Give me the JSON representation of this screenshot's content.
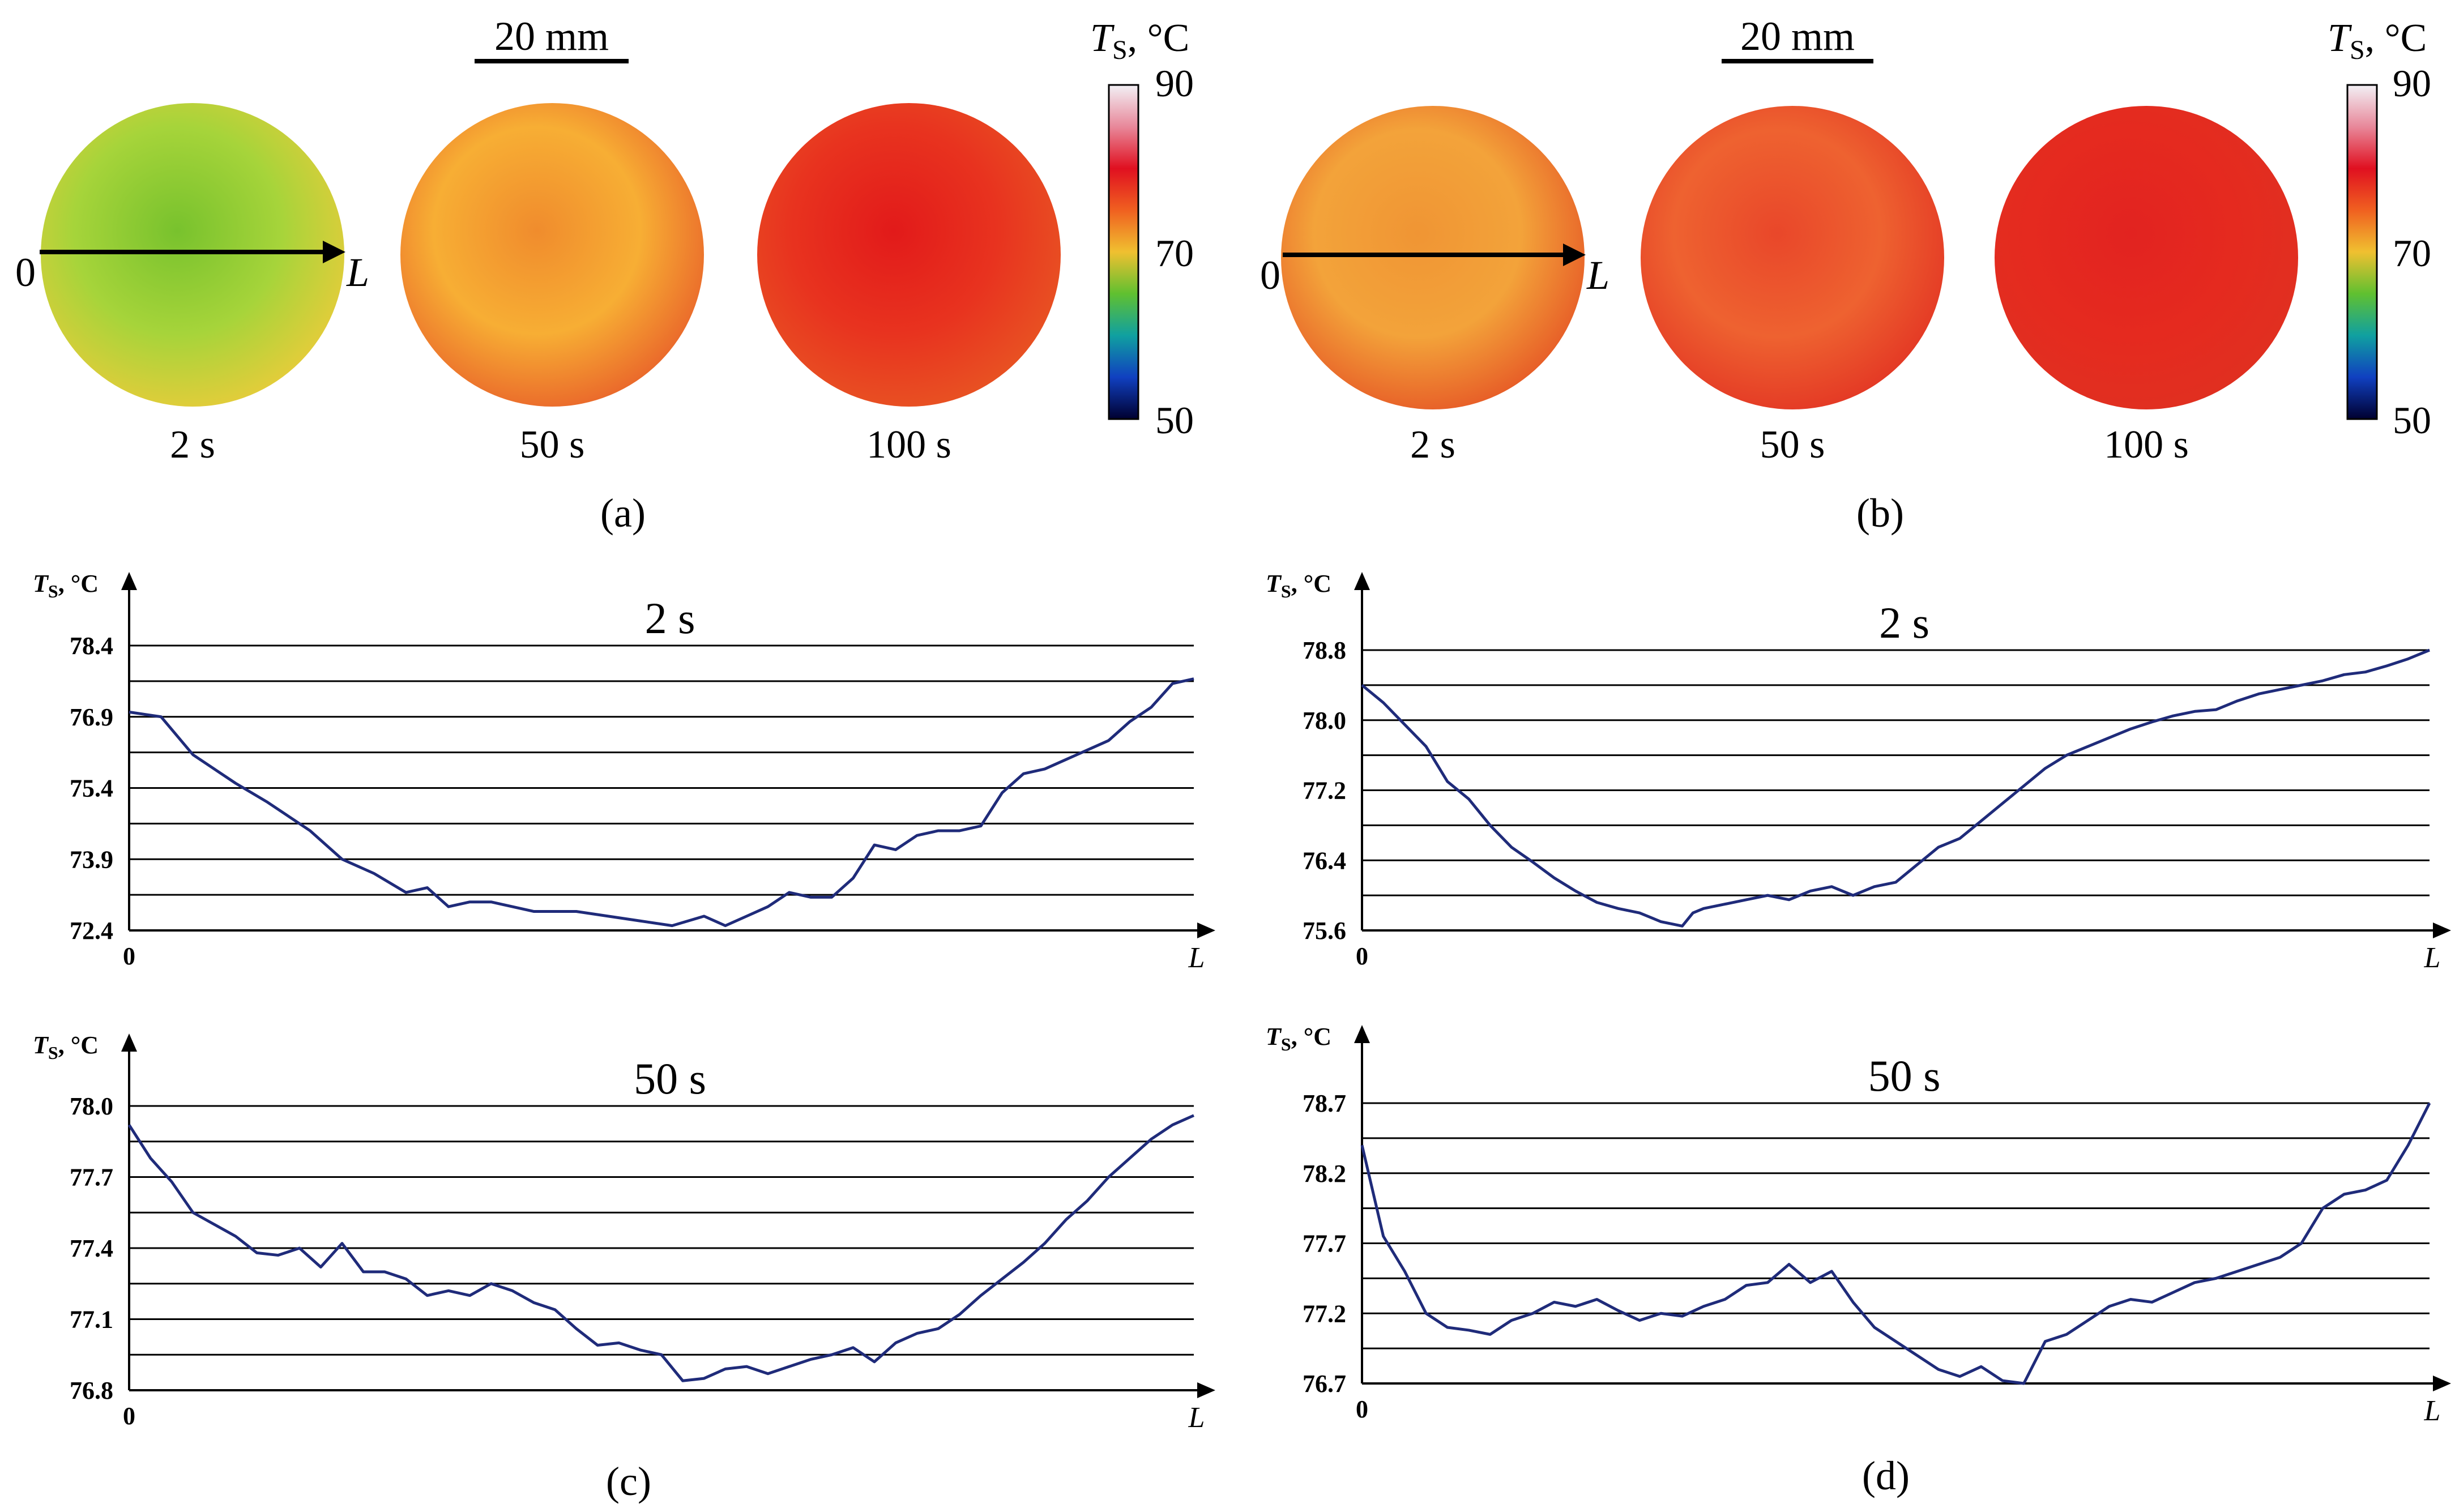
{
  "panels": [
    {
      "label": "(a)",
      "scale_bar": "20 mm",
      "frames": [
        {
          "time": "2 s",
          "colors": [
            "#a6d43a",
            "#78c22d",
            "#e8cc3a"
          ]
        },
        {
          "time": "50 s",
          "colors": [
            "#f7ae34",
            "#f08c2d",
            "#e9632a"
          ]
        },
        {
          "time": "100 s",
          "colors": [
            "#e8331f",
            "#e21a1a",
            "#e85423"
          ]
        }
      ],
      "line_start": "0",
      "line_end": "L",
      "colorbar": {
        "title_symbol": "T",
        "title_sub": "S",
        "title_unit": ", °C",
        "ticks": [
          "90",
          "70",
          "50"
        ],
        "range": [
          50,
          90
        ],
        "stops": [
          "#f2f0f5",
          "#e8889a",
          "#e01020",
          "#f06020",
          "#f0c030",
          "#60c030",
          "#10a0a0",
          "#1040c0",
          "#000030"
        ]
      }
    },
    {
      "label": "(b)",
      "scale_bar": "20 mm",
      "frames": [
        {
          "time": "2 s",
          "colors": [
            "#f3a33a",
            "#f09534",
            "#e65826"
          ]
        },
        {
          "time": "50 s",
          "colors": [
            "#ee6230",
            "#e9472a",
            "#e33624"
          ]
        },
        {
          "time": "100 s",
          "colors": [
            "#e52a1f",
            "#e22320",
            "#e03020"
          ]
        }
      ],
      "line_start": "0",
      "line_end": "L",
      "colorbar": {
        "title_symbol": "T",
        "title_sub": "S",
        "title_unit": ", °C",
        "ticks": [
          "90",
          "70",
          "50"
        ],
        "range": [
          50,
          90
        ],
        "stops": [
          "#f2f0f5",
          "#e8889a",
          "#e01020",
          "#f06020",
          "#f0c030",
          "#60c030",
          "#10a0a0",
          "#1040c0",
          "#000030"
        ]
      }
    }
  ],
  "chart_data": [
    {
      "id": "c",
      "type": "line",
      "panel_label": "(c)",
      "title": "2 s",
      "ylabel_symbol": "T",
      "ylabel_sub": "S",
      "ylabel_unit": ", °C",
      "x_start_label": "0",
      "x_end_label": "L",
      "yticks": [
        "78.4",
        "76.9",
        "75.4",
        "73.9",
        "72.4"
      ],
      "ylim": [
        72.4,
        78.4
      ],
      "grid": true,
      "series": [
        {
          "color": "#1f2b7a",
          "x": [
            0,
            0.03,
            0.06,
            0.1,
            0.13,
            0.17,
            0.2,
            0.23,
            0.26,
            0.28,
            0.3,
            0.32,
            0.34,
            0.36,
            0.38,
            0.4,
            0.42,
            0.45,
            0.48,
            0.51,
            0.54,
            0.56,
            0.58,
            0.6,
            0.62,
            0.64,
            0.66,
            0.68,
            0.7,
            0.72,
            0.74,
            0.76,
            0.78,
            0.8,
            0.82,
            0.84,
            0.86,
            0.88,
            0.9,
            0.92,
            0.94,
            0.96,
            0.98,
            1.0
          ],
          "y": [
            77.0,
            76.9,
            76.1,
            75.5,
            75.1,
            74.5,
            73.9,
            73.6,
            73.2,
            73.3,
            72.9,
            73.0,
            73.0,
            72.9,
            72.8,
            72.8,
            72.8,
            72.7,
            72.6,
            72.5,
            72.7,
            72.5,
            72.7,
            72.9,
            73.2,
            73.1,
            73.1,
            73.5,
            74.2,
            74.1,
            74.4,
            74.5,
            74.5,
            74.6,
            75.3,
            75.7,
            75.8,
            76.0,
            76.2,
            76.4,
            76.8,
            77.1,
            77.6,
            77.7
          ]
        }
      ]
    },
    {
      "id": "c2",
      "type": "line",
      "panel_label": "",
      "title": "50 s",
      "ylabel_symbol": "T",
      "ylabel_sub": "S",
      "ylabel_unit": ", °C",
      "x_start_label": "0",
      "x_end_label": "L",
      "yticks": [
        "78.0",
        "77.7",
        "77.4",
        "77.1",
        "76.8"
      ],
      "ylim": [
        76.8,
        78.0
      ],
      "grid": true,
      "series": [
        {
          "color": "#1f2b7a",
          "x": [
            0,
            0.02,
            0.04,
            0.06,
            0.08,
            0.1,
            0.12,
            0.14,
            0.16,
            0.18,
            0.2,
            0.22,
            0.24,
            0.26,
            0.28,
            0.3,
            0.32,
            0.34,
            0.36,
            0.38,
            0.4,
            0.42,
            0.44,
            0.46,
            0.48,
            0.5,
            0.52,
            0.54,
            0.56,
            0.58,
            0.6,
            0.62,
            0.64,
            0.66,
            0.68,
            0.7,
            0.72,
            0.74,
            0.76,
            0.78,
            0.8,
            0.82,
            0.84,
            0.86,
            0.88,
            0.9,
            0.92,
            0.94,
            0.96,
            0.98,
            1.0
          ],
          "y": [
            77.92,
            77.78,
            77.68,
            77.55,
            77.5,
            77.45,
            77.38,
            77.37,
            77.4,
            77.32,
            77.42,
            77.3,
            77.3,
            77.27,
            77.2,
            77.22,
            77.2,
            77.25,
            77.22,
            77.17,
            77.14,
            77.06,
            76.99,
            77.0,
            76.97,
            76.95,
            76.84,
            76.85,
            76.89,
            76.9,
            76.87,
            76.9,
            76.93,
            76.95,
            76.98,
            76.92,
            77.0,
            77.04,
            77.06,
            77.12,
            77.2,
            77.27,
            77.34,
            77.42,
            77.52,
            77.6,
            77.7,
            77.78,
            77.86,
            77.92,
            77.96
          ]
        }
      ]
    },
    {
      "id": "d",
      "type": "line",
      "panel_label": "(d)",
      "title": "2 s",
      "ylabel_symbol": "T",
      "ylabel_sub": "S",
      "ylabel_unit": ", °C",
      "x_start_label": "0",
      "x_end_label": "L",
      "yticks": [
        "78.8",
        "78.0",
        "77.2",
        "76.4",
        "75.6"
      ],
      "ylim": [
        75.6,
        78.8
      ],
      "grid": true,
      "series": [
        {
          "color": "#1f2b7a",
          "x": [
            0,
            0.02,
            0.04,
            0.06,
            0.08,
            0.1,
            0.12,
            0.14,
            0.16,
            0.18,
            0.2,
            0.22,
            0.24,
            0.26,
            0.28,
            0.3,
            0.31,
            0.32,
            0.34,
            0.36,
            0.38,
            0.4,
            0.42,
            0.44,
            0.46,
            0.48,
            0.5,
            0.52,
            0.54,
            0.56,
            0.58,
            0.6,
            0.62,
            0.64,
            0.66,
            0.68,
            0.7,
            0.72,
            0.74,
            0.76,
            0.78,
            0.8,
            0.82,
            0.84,
            0.86,
            0.88,
            0.9,
            0.92,
            0.94,
            0.96,
            0.98,
            1.0
          ],
          "y": [
            78.4,
            78.2,
            77.95,
            77.7,
            77.3,
            77.1,
            76.8,
            76.55,
            76.38,
            76.2,
            76.05,
            75.92,
            75.85,
            75.8,
            75.7,
            75.65,
            75.8,
            75.85,
            75.9,
            75.95,
            76.0,
            75.95,
            76.05,
            76.1,
            76.0,
            76.1,
            76.15,
            76.35,
            76.55,
            76.65,
            76.85,
            77.05,
            77.25,
            77.45,
            77.6,
            77.7,
            77.8,
            77.9,
            77.98,
            78.05,
            78.1,
            78.12,
            78.22,
            78.3,
            78.35,
            78.4,
            78.45,
            78.52,
            78.55,
            78.62,
            78.7,
            78.8
          ]
        }
      ]
    },
    {
      "id": "d2",
      "type": "line",
      "panel_label": "",
      "title": "50 s",
      "ylabel_symbol": "T",
      "ylabel_sub": "S",
      "ylabel_unit": ", °C",
      "x_start_label": "0",
      "x_end_label": "L",
      "yticks": [
        "78.7",
        "78.2",
        "77.7",
        "77.2",
        "76.7"
      ],
      "ylim": [
        76.7,
        78.7
      ],
      "grid": true,
      "series": [
        {
          "color": "#1f2b7a",
          "x": [
            0,
            0.02,
            0.04,
            0.06,
            0.08,
            0.1,
            0.12,
            0.14,
            0.16,
            0.18,
            0.2,
            0.22,
            0.24,
            0.26,
            0.28,
            0.3,
            0.32,
            0.34,
            0.36,
            0.38,
            0.4,
            0.42,
            0.44,
            0.46,
            0.48,
            0.5,
            0.52,
            0.54,
            0.56,
            0.58,
            0.6,
            0.62,
            0.64,
            0.66,
            0.68,
            0.7,
            0.72,
            0.74,
            0.76,
            0.78,
            0.8,
            0.82,
            0.84,
            0.86,
            0.88,
            0.9,
            0.92,
            0.94,
            0.96,
            0.98,
            1.0
          ],
          "y": [
            78.4,
            77.75,
            77.5,
            77.2,
            77.1,
            77.08,
            77.05,
            77.15,
            77.2,
            77.28,
            77.25,
            77.3,
            77.22,
            77.15,
            77.2,
            77.18,
            77.25,
            77.3,
            77.4,
            77.42,
            77.55,
            77.42,
            77.5,
            77.28,
            77.1,
            77.0,
            76.9,
            76.8,
            76.75,
            76.82,
            76.72,
            76.7,
            77.0,
            77.05,
            77.15,
            77.25,
            77.3,
            77.28,
            77.35,
            77.42,
            77.45,
            77.5,
            77.55,
            77.6,
            77.7,
            77.95,
            78.05,
            78.08,
            78.15,
            78.4,
            78.7
          ]
        }
      ]
    }
  ]
}
